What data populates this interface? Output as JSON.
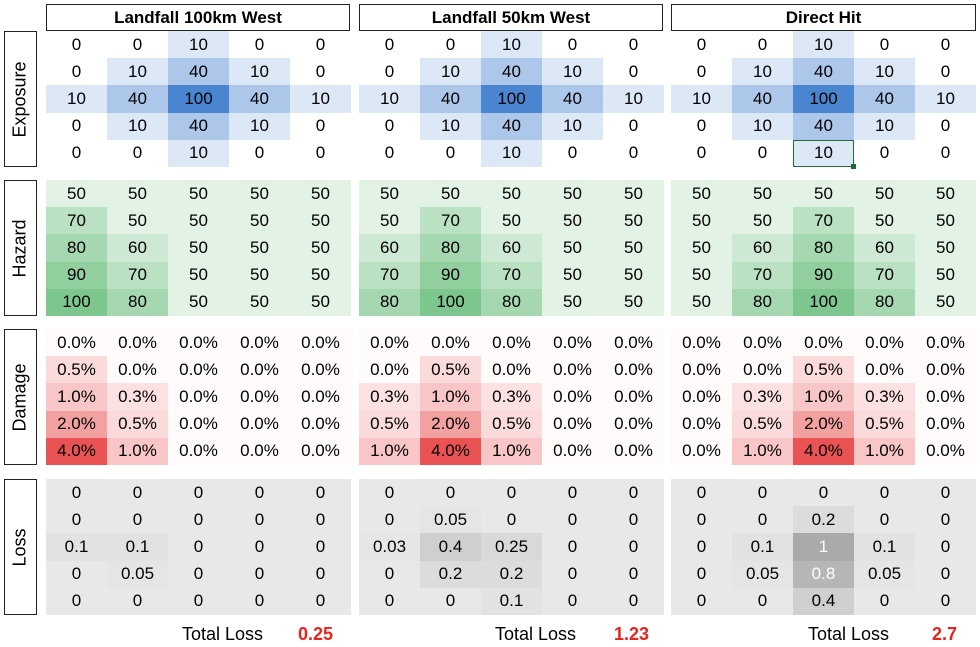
{
  "scenarios": [
    {
      "title": "Landfall 100km West",
      "total_loss": "0.25"
    },
    {
      "title": "Landfall 50km West",
      "total_loss": "1.23"
    },
    {
      "title": "Direct Hit",
      "total_loss": "2.7"
    }
  ],
  "row_labels": [
    "Exposure",
    "Hazard",
    "Damage",
    "Loss"
  ],
  "total_loss_label": "Total Loss",
  "exposure": [
    [
      [
        "0",
        "0",
        "10",
        "0",
        "0"
      ],
      [
        "0",
        "10",
        "40",
        "10",
        "0"
      ],
      [
        "10",
        "40",
        "100",
        "40",
        "10"
      ],
      [
        "0",
        "10",
        "40",
        "10",
        "0"
      ],
      [
        "0",
        "0",
        "10",
        "0",
        "0"
      ]
    ],
    [
      [
        "0",
        "0",
        "10",
        "0",
        "0"
      ],
      [
        "0",
        "10",
        "40",
        "10",
        "0"
      ],
      [
        "10",
        "40",
        "100",
        "40",
        "10"
      ],
      [
        "0",
        "10",
        "40",
        "10",
        "0"
      ],
      [
        "0",
        "0",
        "10",
        "0",
        "0"
      ]
    ],
    [
      [
        "0",
        "0",
        "10",
        "0",
        "0"
      ],
      [
        "0",
        "10",
        "40",
        "10",
        "0"
      ],
      [
        "10",
        "40",
        "100",
        "40",
        "10"
      ],
      [
        "0",
        "10",
        "40",
        "10",
        "0"
      ],
      [
        "0",
        "0",
        "10",
        "0",
        "0"
      ]
    ]
  ],
  "hazard": [
    [
      [
        "50",
        "50",
        "50",
        "50",
        "50"
      ],
      [
        "70",
        "50",
        "50",
        "50",
        "50"
      ],
      [
        "80",
        "60",
        "50",
        "50",
        "50"
      ],
      [
        "90",
        "70",
        "50",
        "50",
        "50"
      ],
      [
        "100",
        "80",
        "50",
        "50",
        "50"
      ]
    ],
    [
      [
        "50",
        "50",
        "50",
        "50",
        "50"
      ],
      [
        "50",
        "70",
        "50",
        "50",
        "50"
      ],
      [
        "60",
        "80",
        "60",
        "50",
        "50"
      ],
      [
        "70",
        "90",
        "70",
        "50",
        "50"
      ],
      [
        "80",
        "100",
        "80",
        "50",
        "50"
      ]
    ],
    [
      [
        "50",
        "50",
        "50",
        "50",
        "50"
      ],
      [
        "50",
        "50",
        "70",
        "50",
        "50"
      ],
      [
        "50",
        "60",
        "80",
        "60",
        "50"
      ],
      [
        "50",
        "70",
        "90",
        "70",
        "50"
      ],
      [
        "50",
        "80",
        "100",
        "80",
        "50"
      ]
    ]
  ],
  "damage": [
    [
      [
        "0.0%",
        "0.0%",
        "0.0%",
        "0.0%",
        "0.0%"
      ],
      [
        "0.5%",
        "0.0%",
        "0.0%",
        "0.0%",
        "0.0%"
      ],
      [
        "1.0%",
        "0.3%",
        "0.0%",
        "0.0%",
        "0.0%"
      ],
      [
        "2.0%",
        "0.5%",
        "0.0%",
        "0.0%",
        "0.0%"
      ],
      [
        "4.0%",
        "1.0%",
        "0.0%",
        "0.0%",
        "0.0%"
      ]
    ],
    [
      [
        "0.0%",
        "0.0%",
        "0.0%",
        "0.0%",
        "0.0%"
      ],
      [
        "0.0%",
        "0.5%",
        "0.0%",
        "0.0%",
        "0.0%"
      ],
      [
        "0.3%",
        "1.0%",
        "0.3%",
        "0.0%",
        "0.0%"
      ],
      [
        "0.5%",
        "2.0%",
        "0.5%",
        "0.0%",
        "0.0%"
      ],
      [
        "1.0%",
        "4.0%",
        "1.0%",
        "0.0%",
        "0.0%"
      ]
    ],
    [
      [
        "0.0%",
        "0.0%",
        "0.0%",
        "0.0%",
        "0.0%"
      ],
      [
        "0.0%",
        "0.0%",
        "0.5%",
        "0.0%",
        "0.0%"
      ],
      [
        "0.0%",
        "0.3%",
        "1.0%",
        "0.3%",
        "0.0%"
      ],
      [
        "0.0%",
        "0.5%",
        "2.0%",
        "0.5%",
        "0.0%"
      ],
      [
        "0.0%",
        "1.0%",
        "4.0%",
        "1.0%",
        "0.0%"
      ]
    ]
  ],
  "loss": [
    [
      [
        "0",
        "0",
        "0",
        "0",
        "0"
      ],
      [
        "0",
        "0",
        "0",
        "0",
        "0"
      ],
      [
        "0.1",
        "0.1",
        "0",
        "0",
        "0"
      ],
      [
        "0",
        "0.05",
        "0",
        "0",
        "0"
      ],
      [
        "0",
        "0",
        "0",
        "0",
        "0"
      ]
    ],
    [
      [
        "0",
        "0",
        "0",
        "0",
        "0"
      ],
      [
        "0",
        "0.05",
        "0",
        "0",
        "0"
      ],
      [
        "0.03",
        "0.4",
        "0.25",
        "0",
        "0"
      ],
      [
        "0",
        "0.2",
        "0.2",
        "0",
        "0"
      ],
      [
        "0",
        "0",
        "0.1",
        "0",
        "0"
      ]
    ],
    [
      [
        "0",
        "0",
        "0",
        "0",
        "0"
      ],
      [
        "0",
        "0",
        "0.2",
        "0",
        "0"
      ],
      [
        "0",
        "0.1",
        "1",
        "0.1",
        "0"
      ],
      [
        "0",
        "0.05",
        "0.8",
        "0.05",
        "0"
      ],
      [
        "0",
        "0",
        "0.4",
        "0",
        "0"
      ]
    ]
  ],
  "colors": {
    "exposure": "#4a86cf",
    "hazard": "#5cb870",
    "damage": "#e84a4a",
    "loss": "#a9a9a9",
    "total_value": "#e8241c",
    "selection": "#1e6b3a"
  },
  "selected_cell": {
    "block": "exposure",
    "scenario": 2,
    "row": 4,
    "col": 2
  }
}
